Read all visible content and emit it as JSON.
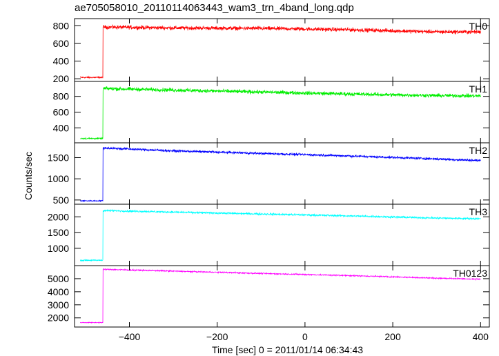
{
  "title": "ae705058010_20110114063443_wam3_trn_4band_long.qdp",
  "chart_data": {
    "type": "line",
    "title": "ae705058010_20110114063443_wam3_trn_4band_long.qdp",
    "xlabel": "Time [sec] 0 = 2011/01/14 06:34:43",
    "ylabel": "Counts/sec",
    "xlim": [
      -525,
      420
    ],
    "xticks": [
      -400,
      -200,
      0,
      200,
      400
    ],
    "xtick_labels": [
      "−400",
      "−200",
      "0",
      "200",
      "400"
    ],
    "burst_start": -460,
    "panels": [
      {
        "name": "TH0",
        "color": "#ff0000",
        "ylim": [
          170,
          880
        ],
        "yticks": [
          200,
          400,
          600,
          800
        ],
        "pre_level": 215,
        "pre_noise": 12,
        "post_points": [
          [
            -460,
            785
          ],
          [
            -300,
            775
          ],
          [
            -100,
            770
          ],
          [
            100,
            755
          ],
          [
            300,
            730
          ],
          [
            400,
            730
          ]
        ],
        "post_noise": 32
      },
      {
        "name": "TH1",
        "color": "#00ee00",
        "ylim": [
          210,
          990
        ],
        "yticks": [
          400,
          600,
          800
        ],
        "pre_level": 265,
        "pre_noise": 14,
        "post_points": [
          [
            -460,
            900
          ],
          [
            -300,
            880
          ],
          [
            -100,
            855
          ],
          [
            100,
            830
          ],
          [
            300,
            810
          ],
          [
            400,
            805
          ]
        ],
        "post_noise": 35
      },
      {
        "name": "TH2",
        "color": "#0000ff",
        "ylim": [
          400,
          1850
        ],
        "yticks": [
          500,
          1000,
          1500
        ],
        "pre_level": 480,
        "pre_noise": 18,
        "post_points": [
          [
            -460,
            1730
          ],
          [
            -300,
            1660
          ],
          [
            -100,
            1600
          ],
          [
            100,
            1540
          ],
          [
            300,
            1470
          ],
          [
            400,
            1430
          ]
        ],
        "post_noise": 40
      },
      {
        "name": "TH3",
        "color": "#00ffff",
        "ylim": [
          450,
          2400
        ],
        "yticks": [
          1000,
          1500,
          2000
        ],
        "pre_level": 620,
        "pre_noise": 25,
        "post_points": [
          [
            -460,
            2200
          ],
          [
            -300,
            2150
          ],
          [
            -100,
            2090
          ],
          [
            100,
            2030
          ],
          [
            300,
            1960
          ],
          [
            400,
            1940
          ]
        ],
        "post_noise": 45
      },
      {
        "name": "TH0123",
        "color": "#ff00ff",
        "ylim": [
          1300,
          6000
        ],
        "yticks": [
          2000,
          3000,
          4000,
          5000
        ],
        "pre_level": 1640,
        "pre_noise": 40,
        "post_points": [
          [
            -460,
            5720
          ],
          [
            -300,
            5580
          ],
          [
            -100,
            5400
          ],
          [
            100,
            5240
          ],
          [
            300,
            5040
          ],
          [
            400,
            4960
          ]
        ],
        "post_noise": 70
      }
    ]
  }
}
